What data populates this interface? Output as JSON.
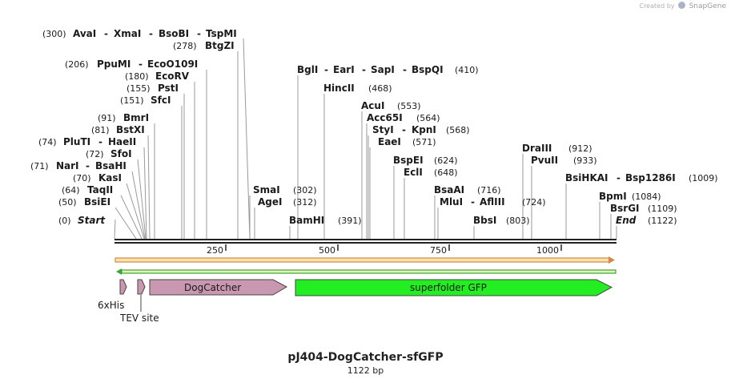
{
  "watermark": {
    "prefix": "Created by",
    "brand": "SnapGene"
  },
  "title": "pJ404-DogCatcher-sfGFP",
  "length_label": "1122 bp",
  "length": 1122,
  "ruler_ticks": [
    "250",
    "500",
    "750",
    "1000"
  ],
  "sites": [
    {
      "names": [
        "AvaI",
        "XmaI",
        "BsoBI",
        "TspMI"
      ],
      "pos": "(300)"
    },
    {
      "names": [
        "BtgZI"
      ],
      "pos": "(278)"
    },
    {
      "names": [
        "PpuMI",
        "EcoO109I"
      ],
      "pos": "(206)"
    },
    {
      "names": [
        "EcoRV"
      ],
      "pos": "(180)"
    },
    {
      "names": [
        "PstI"
      ],
      "pos": "(155)"
    },
    {
      "names": [
        "SfcI"
      ],
      "pos": "(151)"
    },
    {
      "names": [
        "BmrI"
      ],
      "pos": "(91)"
    },
    {
      "names": [
        "BstXI"
      ],
      "pos": "(81)"
    },
    {
      "names": [
        "PluTI",
        "HaeII"
      ],
      "pos": "(74)"
    },
    {
      "names": [
        "SfoI"
      ],
      "pos": "(72)"
    },
    {
      "names": [
        "NarI",
        "BsaHI"
      ],
      "pos": "(71)"
    },
    {
      "names": [
        "KasI"
      ],
      "pos": "(70)"
    },
    {
      "names": [
        "TaqII"
      ],
      "pos": "(64)"
    },
    {
      "names": [
        "BsiEI"
      ],
      "pos": "(50)"
    },
    {
      "names": [
        "Start"
      ],
      "pos": "(0)"
    },
    {
      "names": [
        "SmaI"
      ],
      "pos": "(302)"
    },
    {
      "names": [
        "AgeI"
      ],
      "pos": "(312)"
    },
    {
      "names": [
        "BamHI"
      ],
      "pos": "(391)"
    },
    {
      "names": [
        "BglI",
        "EarI",
        "SapI",
        "BspQI"
      ],
      "pos": "(410)"
    },
    {
      "names": [
        "HincII"
      ],
      "pos": "(468)"
    },
    {
      "names": [
        "AcuI"
      ],
      "pos": "(553)"
    },
    {
      "names": [
        "Acc65I"
      ],
      "pos": "(564)"
    },
    {
      "names": [
        "StyI",
        "KpnI"
      ],
      "pos": "(568)"
    },
    {
      "names": [
        "EaeI"
      ],
      "pos": "(571)"
    },
    {
      "names": [
        "BspEI"
      ],
      "pos": "(624)"
    },
    {
      "names": [
        "EclI"
      ],
      "pos": "(648)"
    },
    {
      "names": [
        "BsaAI"
      ],
      "pos": "(716)"
    },
    {
      "names": [
        "MluI",
        "AflIII"
      ],
      "pos": "(724)"
    },
    {
      "names": [
        "BbsI"
      ],
      "pos": "(803)"
    },
    {
      "names": [
        "DraIII"
      ],
      "pos": "(912)"
    },
    {
      "names": [
        "PvuII"
      ],
      "pos": "(933)"
    },
    {
      "names": [
        "BsiHKAI",
        "Bsp1286I"
      ],
      "pos": "(1009)"
    },
    {
      "names": [
        "BpmI"
      ],
      "pos": "(1084)"
    },
    {
      "names": [
        "BsrGI"
      ],
      "pos": "(1109)"
    },
    {
      "names": [
        "End"
      ],
      "pos": "(1122)"
    }
  ],
  "features": [
    {
      "name": "6xHis",
      "color": "#c997af"
    },
    {
      "name": "TEV site",
      "color": "#c997af"
    },
    {
      "name": "DogCatcher",
      "color": "#c997af"
    },
    {
      "name": "superfolder GFP",
      "color": "#22ee22"
    }
  ],
  "colors": {
    "orf_forward": "#d4874a",
    "orf_forward_fill": "#f5e6a8",
    "orf_reverse": "#37a637",
    "orf_reverse_fill": "#e8f3b6"
  }
}
